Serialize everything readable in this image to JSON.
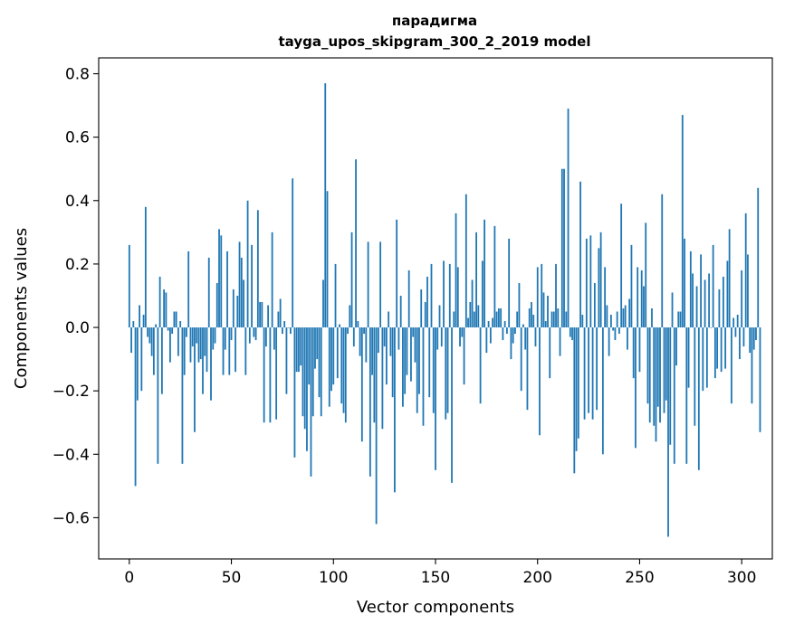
{
  "chart_data": {
    "type": "bar",
    "title": "парадигма",
    "subtitle": "tayga_upos_skipgram_300_2_2019 model",
    "xlabel": "Vector components",
    "ylabel": "Components values",
    "xlim": [
      -15,
      315
    ],
    "ylim": [
      -0.73,
      0.85
    ],
    "xticks": [
      0,
      50,
      100,
      150,
      200,
      250,
      300
    ],
    "yticks": [
      -0.6,
      -0.4,
      -0.2,
      0.0,
      0.2,
      0.4,
      0.6,
      0.8
    ],
    "ytick_labels": [
      "−0.6",
      "−0.4",
      "−0.2",
      "0.0",
      "0.2",
      "0.4",
      "0.6",
      "0.8"
    ],
    "grid": false,
    "bar_color": "#1f77b4",
    "values": [
      0.26,
      -0.08,
      0.02,
      -0.5,
      -0.23,
      0.07,
      -0.2,
      0.04,
      0.38,
      -0.03,
      -0.05,
      -0.09,
      -0.15,
      0.01,
      -0.43,
      0.16,
      -0.21,
      0.12,
      0.11,
      -0.01,
      -0.11,
      -0.02,
      0.05,
      0.05,
      -0.09,
      0.02,
      -0.43,
      -0.15,
      -0.03,
      0.24,
      -0.11,
      -0.06,
      -0.33,
      -0.05,
      -0.11,
      -0.1,
      -0.21,
      -0.09,
      -0.14,
      0.22,
      -0.23,
      -0.07,
      -0.05,
      0.14,
      0.31,
      0.29,
      -0.15,
      -0.07,
      0.24,
      -0.15,
      -0.04,
      0.12,
      -0.14,
      0.1,
      0.27,
      0.22,
      0.15,
      -0.15,
      0.4,
      -0.05,
      0.26,
      -0.03,
      -0.04,
      0.37,
      0.08,
      0.08,
      -0.3,
      -0.06,
      0.07,
      -0.3,
      0.3,
      -0.07,
      -0.29,
      0.05,
      0.09,
      -0.02,
      0.02,
      -0.21,
      0.0,
      -0.02,
      0.47,
      -0.41,
      -0.14,
      -0.14,
      -0.12,
      -0.28,
      -0.32,
      -0.39,
      -0.18,
      -0.47,
      -0.28,
      -0.13,
      -0.1,
      -0.22,
      -0.28,
      0.15,
      0.77,
      0.43,
      -0.25,
      -0.2,
      -0.18,
      0.2,
      -0.16,
      0.01,
      -0.24,
      -0.27,
      -0.3,
      -0.02,
      0.07,
      0.3,
      -0.06,
      0.53,
      0.02,
      -0.09,
      -0.36,
      -0.02,
      -0.11,
      0.27,
      -0.47,
      -0.15,
      -0.3,
      -0.62,
      -0.08,
      0.27,
      -0.32,
      -0.06,
      -0.18,
      0.05,
      -0.09,
      -0.22,
      -0.52,
      0.34,
      -0.07,
      0.1,
      -0.25,
      -0.21,
      -0.15,
      0.18,
      -0.17,
      -0.03,
      -0.11,
      -0.27,
      -0.21,
      0.12,
      -0.31,
      0.08,
      0.16,
      -0.22,
      0.2,
      -0.27,
      -0.45,
      -0.07,
      0.07,
      -0.06,
      0.21,
      -0.29,
      -0.27,
      0.2,
      -0.49,
      0.05,
      0.36,
      0.19,
      -0.06,
      -0.03,
      -0.18,
      0.42,
      0.03,
      0.08,
      0.15,
      0.05,
      0.3,
      0.07,
      -0.24,
      0.21,
      0.34,
      -0.08,
      0.02,
      -0.05,
      0.03,
      0.32,
      0.05,
      0.06,
      0.06,
      -0.04,
      0.02,
      -0.02,
      0.28,
      -0.1,
      -0.05,
      -0.02,
      0.05,
      0.14,
      -0.2,
      0.01,
      -0.07,
      -0.26,
      0.06,
      0.08,
      0.04,
      -0.06,
      0.19,
      -0.34,
      0.2,
      0.11,
      0.02,
      0.1,
      -0.16,
      0.05,
      0.05,
      0.2,
      0.06,
      -0.09,
      0.5,
      0.5,
      0.05,
      0.69,
      -0.03,
      -0.04,
      -0.46,
      -0.39,
      -0.35,
      0.46,
      0.04,
      -0.29,
      0.28,
      -0.27,
      0.29,
      -0.29,
      0.14,
      -0.26,
      0.25,
      0.3,
      -0.4,
      0.19,
      0.07,
      -0.09,
      0.04,
      -0.01,
      -0.04,
      0.05,
      -0.02,
      0.39,
      0.06,
      0.07,
      -0.07,
      0.09,
      0.26,
      -0.16,
      -0.38,
      0.19,
      -0.14,
      0.18,
      0.13,
      0.33,
      -0.24,
      -0.3,
      0.06,
      -0.31,
      -0.36,
      -0.25,
      -0.3,
      0.42,
      -0.27,
      -0.23,
      -0.66,
      -0.37,
      0.11,
      -0.43,
      -0.12,
      0.05,
      0.05,
      0.67,
      0.28,
      -0.43,
      -0.19,
      0.24,
      0.17,
      -0.31,
      0.13,
      -0.45,
      0.23,
      -0.2,
      0.15,
      -0.19,
      0.17,
      0.0,
      0.26,
      -0.16,
      -0.13,
      0.12,
      -0.14,
      0.16,
      -0.13,
      0.21,
      0.31,
      -0.24,
      0.03,
      -0.03,
      0.04,
      -0.1,
      0.18,
      -0.06,
      0.36,
      0.23,
      -0.08,
      -0.24,
      -0.07,
      -0.04,
      0.44,
      -0.33
    ]
  }
}
